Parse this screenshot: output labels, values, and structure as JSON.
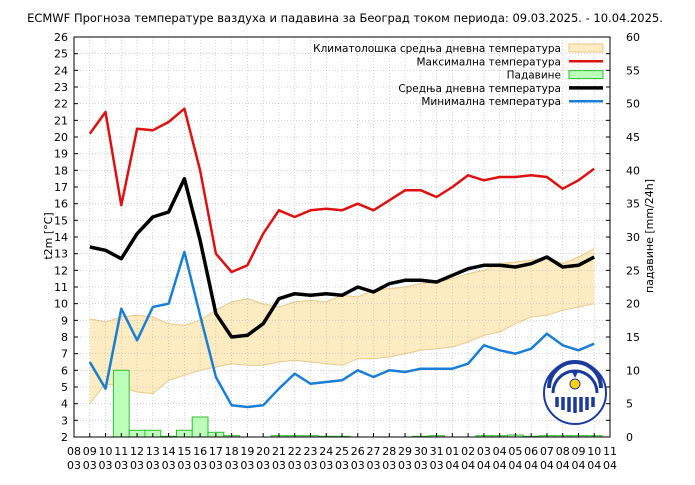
{
  "chart_data": {
    "type": "line",
    "title": "ECMWF Прогноза температуре ваздуха и падавина за Београд током периода: 09.03.2025. - 10.04.2025.",
    "ylabel_left": "t2m [°C]",
    "ylabel_right": "падавине [mm/24h]",
    "ylim_left": [
      2,
      26
    ],
    "ylim_right": [
      0,
      60
    ],
    "yticks_left": [
      "2",
      "3",
      "4",
      "5",
      "6",
      "7",
      "8",
      "9",
      "10",
      "11",
      "12",
      "13",
      "14",
      "15",
      "16",
      "17",
      "18",
      "19",
      "20",
      "21",
      "22",
      "23",
      "24",
      "25",
      "26"
    ],
    "yticks_right": [
      "0",
      "5",
      "10",
      "15",
      "20",
      "25",
      "30",
      "35",
      "40",
      "45",
      "50",
      "55",
      "60"
    ],
    "x_ticks": [
      {
        "d": "08",
        "m": "03"
      },
      {
        "d": "09",
        "m": "03"
      },
      {
        "d": "10",
        "m": "03"
      },
      {
        "d": "11",
        "m": "03"
      },
      {
        "d": "12",
        "m": "03"
      },
      {
        "d": "13",
        "m": "03"
      },
      {
        "d": "14",
        "m": "03"
      },
      {
        "d": "15",
        "m": "03"
      },
      {
        "d": "16",
        "m": "03"
      },
      {
        "d": "17",
        "m": "03"
      },
      {
        "d": "18",
        "m": "03"
      },
      {
        "d": "19",
        "m": "03"
      },
      {
        "d": "20",
        "m": "03"
      },
      {
        "d": "21",
        "m": "03"
      },
      {
        "d": "22",
        "m": "03"
      },
      {
        "d": "23",
        "m": "03"
      },
      {
        "d": "24",
        "m": "03"
      },
      {
        "d": "25",
        "m": "03"
      },
      {
        "d": "26",
        "m": "03"
      },
      {
        "d": "27",
        "m": "03"
      },
      {
        "d": "28",
        "m": "03"
      },
      {
        "d": "29",
        "m": "03"
      },
      {
        "d": "30",
        "m": "03"
      },
      {
        "d": "31",
        "m": "03"
      },
      {
        "d": "01",
        "m": "04"
      },
      {
        "d": "02",
        "m": "04"
      },
      {
        "d": "03",
        "m": "04"
      },
      {
        "d": "04",
        "m": "04"
      },
      {
        "d": "05",
        "m": "04"
      },
      {
        "d": "06",
        "m": "04"
      },
      {
        "d": "07",
        "m": "04"
      },
      {
        "d": "08",
        "m": "04"
      },
      {
        "d": "09",
        "m": "04"
      },
      {
        "d": "10",
        "m": "04"
      },
      {
        "d": "11",
        "m": "04"
      }
    ],
    "x_values": [
      "2025-03-09",
      "2025-03-10",
      "2025-03-11",
      "2025-03-12",
      "2025-03-13",
      "2025-03-14",
      "2025-03-15",
      "2025-03-16",
      "2025-03-17",
      "2025-03-18",
      "2025-03-19",
      "2025-03-20",
      "2025-03-21",
      "2025-03-22",
      "2025-03-23",
      "2025-03-24",
      "2025-03-25",
      "2025-03-26",
      "2025-03-27",
      "2025-03-28",
      "2025-03-29",
      "2025-03-30",
      "2025-03-31",
      "2025-04-01",
      "2025-04-02",
      "2025-04-03",
      "2025-04-04",
      "2025-04-05",
      "2025-04-06",
      "2025-04-07",
      "2025-04-08",
      "2025-04-09",
      "2025-04-10"
    ],
    "legend_position": "top-right",
    "series": [
      {
        "name": "Климатолошка средња дневна температура",
        "kind": "band",
        "color": "#fdecc2",
        "edge": "#e8c98a",
        "lower": [
          4.0,
          5.2,
          5.0,
          4.7,
          4.6,
          5.4,
          5.7,
          6.0,
          6.2,
          6.4,
          6.3,
          6.3,
          6.5,
          6.6,
          6.5,
          6.4,
          6.3,
          6.7,
          6.7,
          6.8,
          7.0,
          7.2,
          7.3,
          7.4,
          7.7,
          8.1,
          8.3,
          8.8,
          9.2,
          9.3,
          9.6,
          9.8,
          10.0
        ],
        "upper": [
          9.1,
          8.9,
          9.2,
          9.3,
          9.2,
          8.8,
          8.7,
          9.0,
          9.6,
          10.1,
          10.3,
          10.0,
          9.8,
          10.1,
          10.2,
          10.1,
          10.5,
          10.4,
          10.8,
          10.9,
          11.0,
          11.2,
          11.3,
          11.5,
          11.8,
          12.0,
          12.4,
          12.5,
          12.6,
          12.8,
          12.4,
          12.8,
          13.3
        ]
      },
      {
        "name": "Максимална температура",
        "kind": "line",
        "color": "#dd1111",
        "values": [
          20.2,
          21.5,
          15.9,
          20.5,
          20.4,
          20.9,
          21.7,
          18.0,
          13.0,
          11.9,
          12.3,
          14.2,
          15.6,
          15.2,
          15.6,
          15.7,
          15.6,
          16.0,
          15.6,
          16.2,
          16.8,
          16.8,
          16.4,
          17.0,
          17.7,
          17.4,
          17.6,
          17.6,
          17.7,
          17.6,
          16.9,
          17.4,
          18.1
        ]
      },
      {
        "name": "Падавине",
        "kind": "bar",
        "color": "#bbffbb",
        "edge": "#33bb33",
        "values": [
          0.0,
          0.0,
          10.0,
          1.0,
          1.0,
          0.1,
          1.0,
          3.0,
          0.7,
          0.2,
          0.0,
          0.0,
          0.2,
          0.2,
          0.2,
          0.1,
          0.1,
          0.0,
          0.0,
          0.0,
          0.0,
          0.1,
          0.2,
          0.0,
          0.0,
          0.2,
          0.2,
          0.3,
          0.1,
          0.2,
          0.2,
          0.2,
          0.2
        ]
      },
      {
        "name": "Средња дневна температура",
        "kind": "line",
        "color": "#000000",
        "values": [
          13.4,
          13.2,
          12.7,
          14.2,
          15.2,
          15.5,
          17.5,
          13.8,
          9.4,
          8.0,
          8.1,
          8.8,
          10.3,
          10.6,
          10.5,
          10.6,
          10.5,
          11.0,
          10.7,
          11.2,
          11.4,
          11.4,
          11.3,
          11.7,
          12.1,
          12.3,
          12.3,
          12.2,
          12.4,
          12.8,
          12.2,
          12.3,
          12.8
        ]
      },
      {
        "name": "Минимална температура",
        "kind": "line",
        "color": "#1a7fd4",
        "values": [
          6.5,
          4.9,
          9.7,
          7.8,
          9.8,
          10.0,
          13.1,
          9.3,
          5.6,
          3.9,
          3.8,
          3.9,
          4.9,
          5.8,
          5.2,
          5.3,
          5.4,
          6.0,
          5.6,
          6.0,
          5.9,
          6.1,
          6.1,
          6.1,
          6.4,
          7.5,
          7.2,
          7.0,
          7.3,
          8.2,
          7.5,
          7.2,
          7.6
        ]
      }
    ]
  }
}
